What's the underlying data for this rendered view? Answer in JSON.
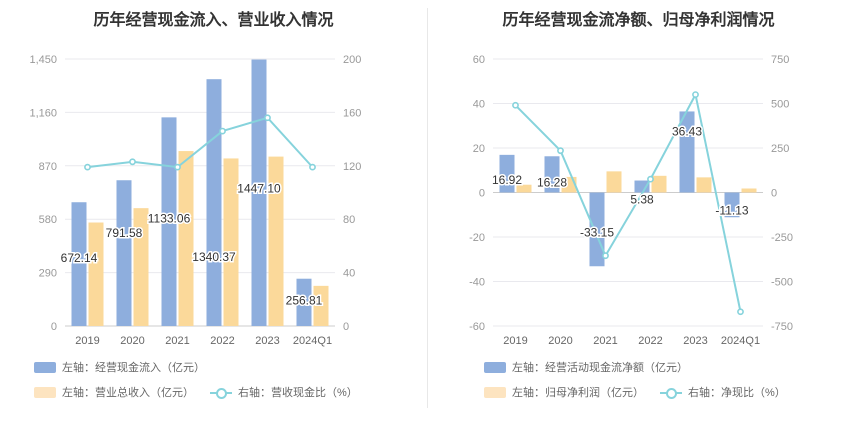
{
  "colors": {
    "blue": "#8eaedd",
    "orange": "#fbd99a",
    "teal": "#86d3dc",
    "grid": "#e9e9ee",
    "axis_text": "#999999"
  },
  "chart_data": [
    {
      "type": "bar",
      "title": "历年经营现金流入、营业收入情况",
      "categories": [
        "2019",
        "2020",
        "2021",
        "2022",
        "2023",
        "2024Q1"
      ],
      "left_axis": {
        "ylim": [
          0,
          1450
        ],
        "ticks": [
          "0",
          "290",
          "580",
          "870",
          "1,160",
          "1,450"
        ]
      },
      "right_axis": {
        "ylim": [
          0,
          200
        ],
        "ticks": [
          "0",
          "40",
          "80",
          "120",
          "160",
          "200"
        ]
      },
      "series": [
        {
          "name": "左轴：经营现金流入（亿元）",
          "type": "bar",
          "axis": "left",
          "color": "#8eaedd",
          "values": [
            672.14,
            791.58,
            1133.06,
            1340.37,
            1447.1,
            256.81
          ],
          "labels": [
            "672.14",
            "791.58",
            "1133.06",
            "1340.37",
            "1447.10",
            "256.81"
          ]
        },
        {
          "name": "左轴：营业总收入（亿元）",
          "type": "bar",
          "axis": "left",
          "color": "#fbd99a",
          "values": [
            562,
            640,
            950,
            910,
            920,
            218
          ]
        },
        {
          "name": "右轴：营收现金比（%）",
          "type": "line",
          "axis": "right",
          "color": "#86d3dc",
          "values": [
            119,
            123,
            119,
            146,
            156,
            119
          ]
        }
      ]
    },
    {
      "type": "bar",
      "title": "历年经营现金流净额、归母净利润情况",
      "categories": [
        "2019",
        "2020",
        "2021",
        "2022",
        "2023",
        "2024Q1"
      ],
      "left_axis": {
        "ylim": [
          -60,
          60
        ],
        "ticks": [
          "-60",
          "-40",
          "-20",
          "0",
          "20",
          "40",
          "60"
        ]
      },
      "right_axis": {
        "ylim": [
          -750,
          750
        ],
        "ticks": [
          "-750",
          "-500",
          "-250",
          "0",
          "250",
          "500",
          "750"
        ]
      },
      "series": [
        {
          "name": "左轴：经营活动现金流净额（亿元）",
          "type": "bar",
          "axis": "left",
          "color": "#8eaedd",
          "values": [
            16.92,
            16.28,
            -33.15,
            5.38,
            36.43,
            -11.13
          ],
          "labels": [
            "16.92",
            "16.28",
            "-33.15",
            "5.38",
            "36.43",
            "-11.13"
          ]
        },
        {
          "name": "左轴：归母净利润（亿元）",
          "type": "bar",
          "axis": "left",
          "color": "#fbd99a",
          "values": [
            3.5,
            7.0,
            9.5,
            7.5,
            6.8,
            1.8
          ]
        },
        {
          "name": "右轴：净现比（%）",
          "type": "line",
          "axis": "right",
          "color": "#86d3dc",
          "values": [
            490,
            235,
            -355,
            75,
            550,
            -670
          ]
        }
      ]
    }
  ]
}
